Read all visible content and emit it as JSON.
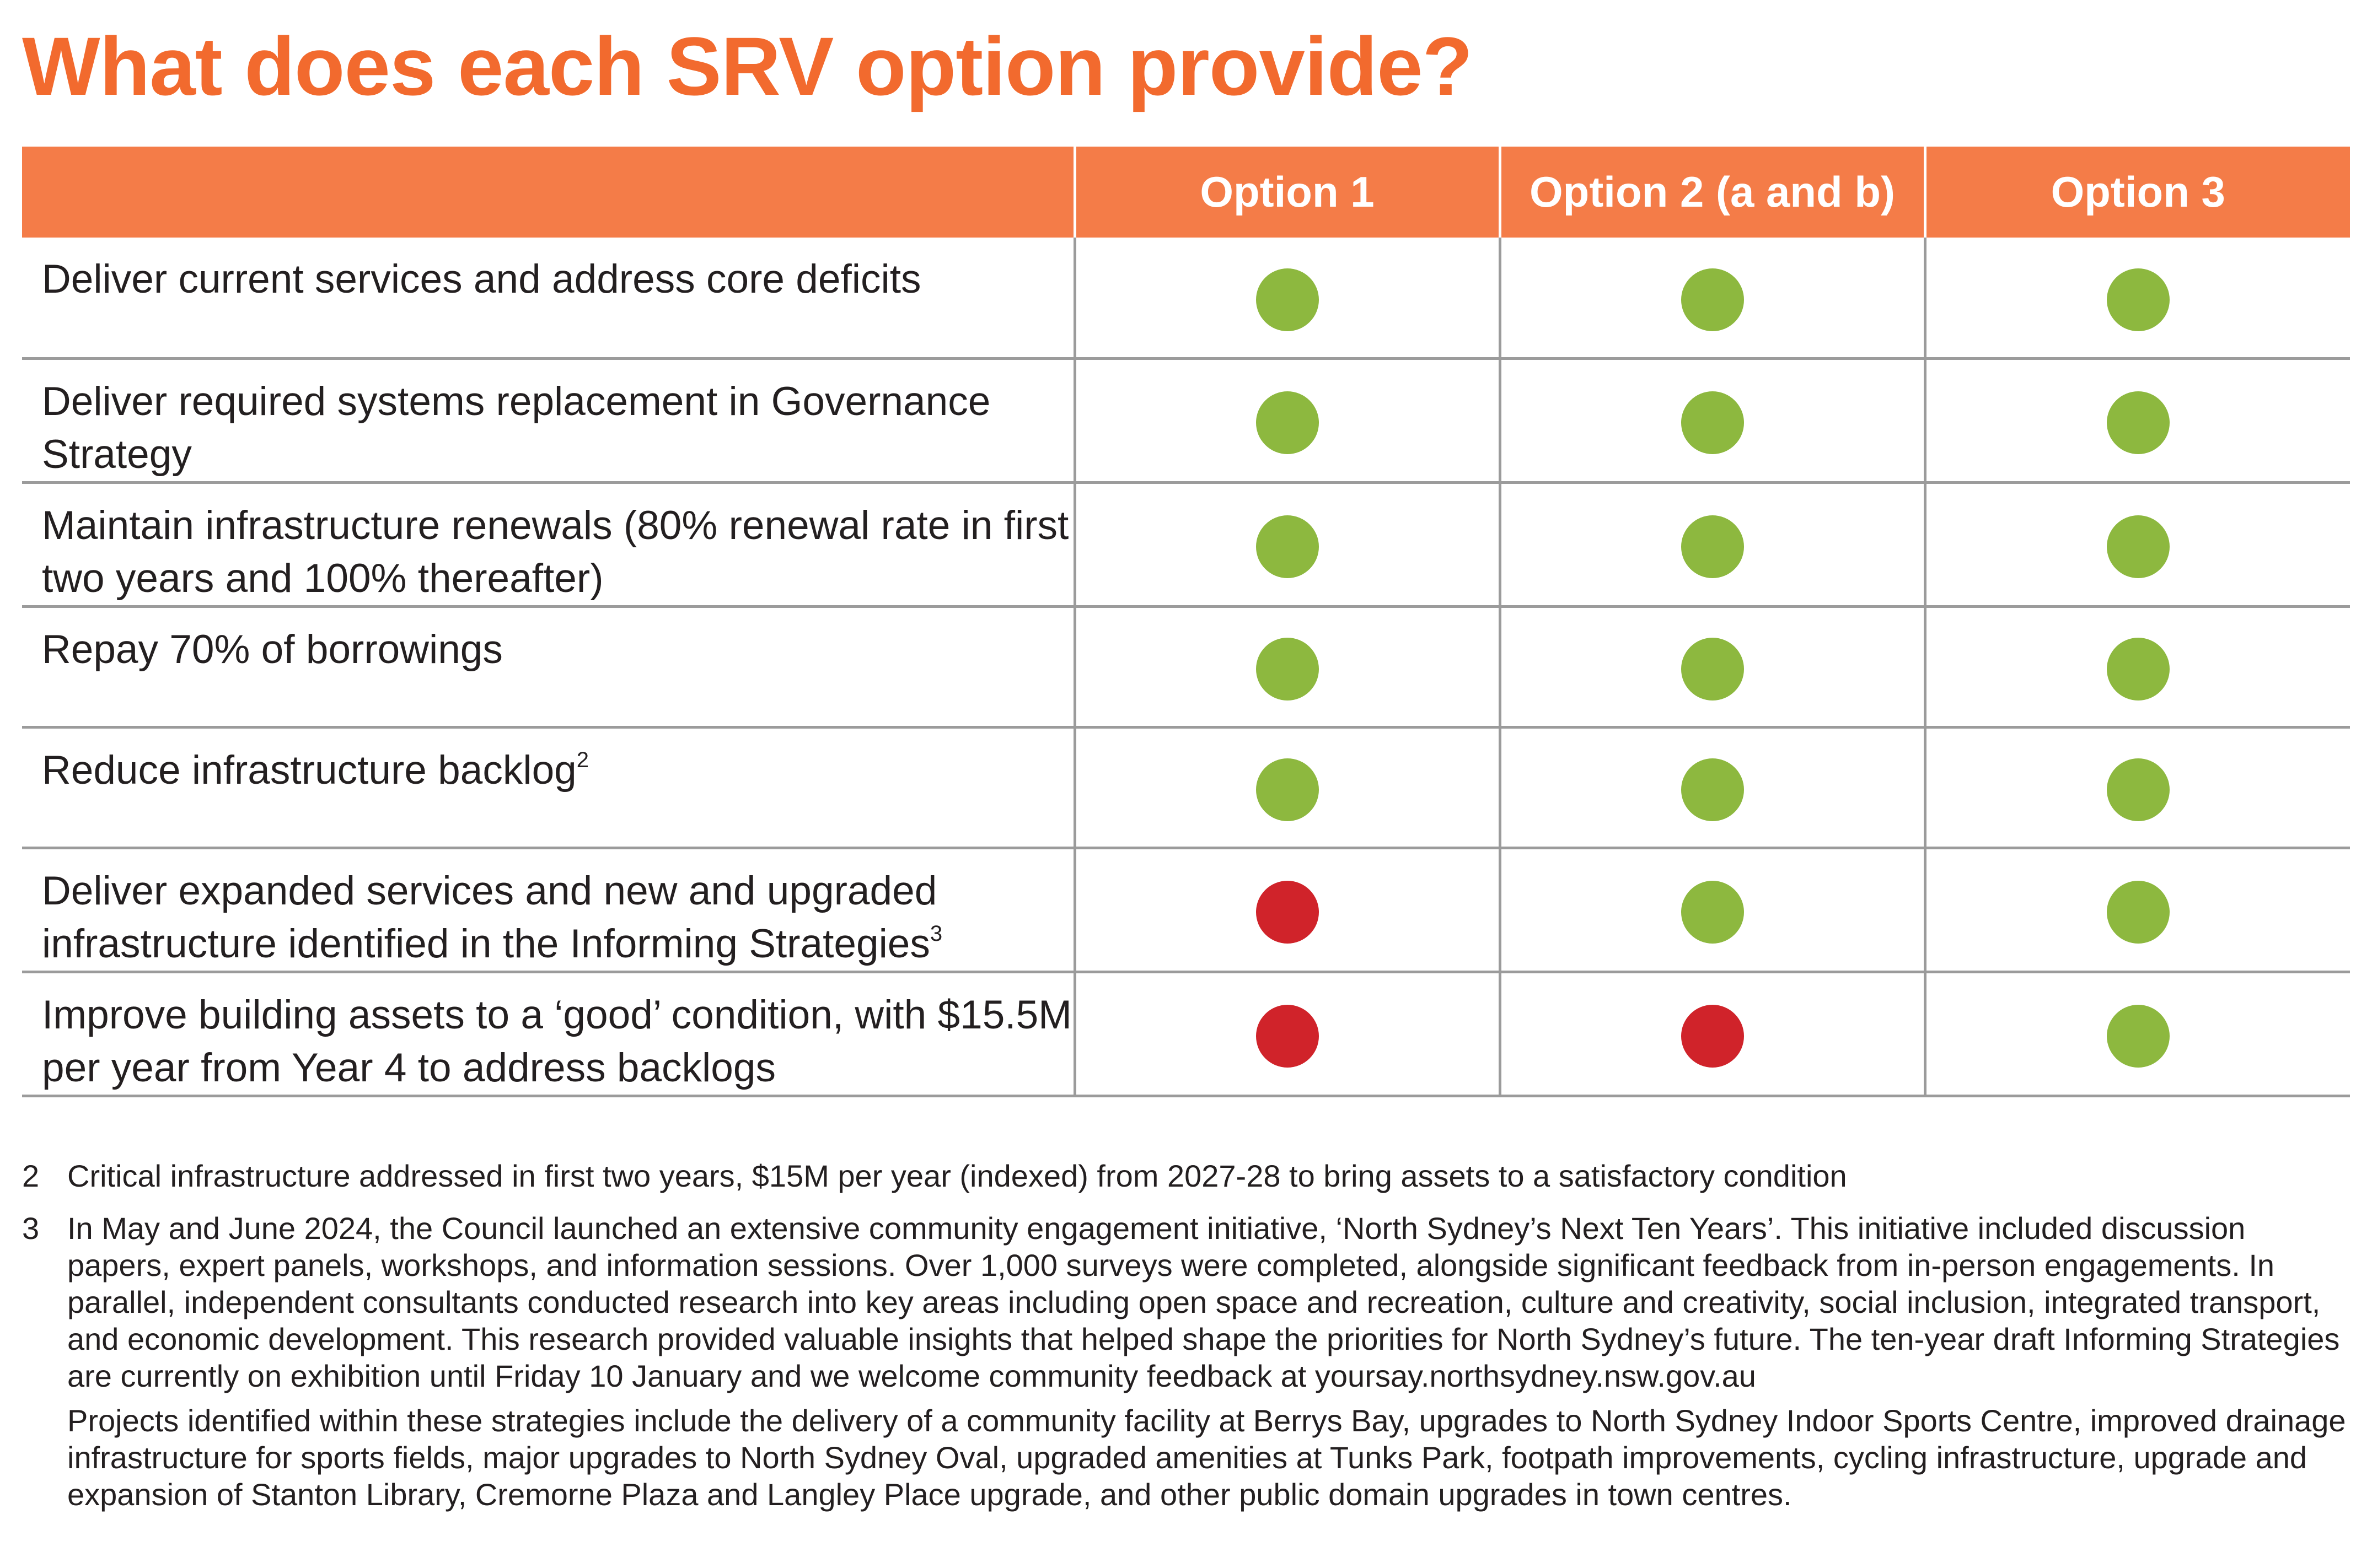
{
  "title": "What does each SRV option provide?",
  "colors": {
    "title": "#f26a2e",
    "header_bg": "#f47c48",
    "header_text": "#ffffff",
    "dot_green": "#8db83f",
    "dot_red": "#d0232a",
    "grid": "#9b9b9b"
  },
  "table": {
    "columns": [
      "",
      "Option 1",
      "Option 2 (a and b)",
      "Option 3"
    ],
    "rows": [
      {
        "label": "Deliver current services and address core deficits",
        "footnote": "",
        "status": [
          "green",
          "green",
          "green"
        ]
      },
      {
        "label": "Deliver required systems replacement in Governance Strategy",
        "footnote": "",
        "status": [
          "green",
          "green",
          "green"
        ]
      },
      {
        "label": "Maintain infrastructure renewals (80% renewal rate in first two years and 100% thereafter)",
        "footnote": "",
        "status": [
          "green",
          "green",
          "green"
        ]
      },
      {
        "label": "Repay 70% of borrowings",
        "footnote": "",
        "status": [
          "green",
          "green",
          "green"
        ]
      },
      {
        "label": "Reduce infrastructure backlog",
        "footnote": "2",
        "status": [
          "green",
          "green",
          "green"
        ]
      },
      {
        "label": "Deliver expanded services and new and upgraded infrastructure identified in the Informing Strategies",
        "footnote": "3",
        "status": [
          "red",
          "green",
          "green"
        ]
      },
      {
        "label": "Improve building assets to a ‘good’ condition, with $15.5M per year from Year 4 to address backlogs",
        "footnote": "",
        "status": [
          "red",
          "red",
          "green"
        ]
      }
    ]
  },
  "footnotes": [
    {
      "number": "2",
      "paragraphs": [
        "Critical infrastructure addressed in first two years, $15M per year (indexed) from 2027-28 to bring assets to a satisfactory condition"
      ]
    },
    {
      "number": "3",
      "paragraphs": [
        "In May and June 2024, the Council launched an extensive community engagement initiative, ‘North Sydney’s Next Ten Years’. This initiative included discussion papers, expert panels, workshops, and information sessions. Over 1,000 surveys were completed, alongside significant feedback from in-person engagements. In parallel, independent consultants conducted research into key areas including open space and recreation, culture and creativity, social inclusion, integrated transport, and economic development. This research provided valuable insights that helped shape the priorities for North Sydney’s future. The ten-year draft Informing Strategies are currently on exhibition until Friday 10 January and we welcome community feedback at yoursay.northsydney.nsw.gov.au",
        "Projects identified within these strategies include the delivery of a community facility at Berrys Bay, upgrades to North Sydney Indoor Sports Centre, improved drainage infrastructure for sports fields, major upgrades to North Sydney Oval, upgraded amenities at Tunks Park, footpath improvements, cycling infrastructure, upgrade and expansion of Stanton Library, Cremorne Plaza and Langley Place upgrade, and other public domain upgrades in town centres."
      ]
    }
  ]
}
